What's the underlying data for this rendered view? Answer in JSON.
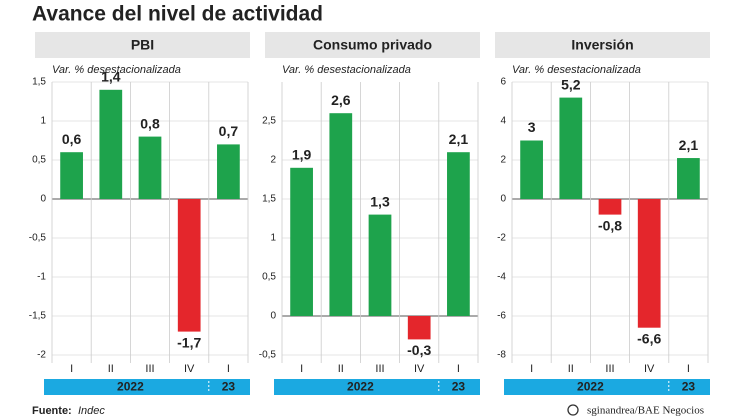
{
  "title": "Avance del nivel de actividad",
  "source_label": "Fuente:",
  "source": "Indec",
  "credit": "sginandrea/BAE Negocios",
  "chart_data": [
    {
      "type": "bar",
      "title": "PBI",
      "subtitle": "Var. % desestacionalizada",
      "categories": [
        "I",
        "II",
        "III",
        "IV",
        "I"
      ],
      "groups": [
        {
          "label": "2022",
          "count": 4
        },
        {
          "label": "23",
          "count": 1
        }
      ],
      "values": [
        0.6,
        1.4,
        0.8,
        -1.7,
        0.7
      ],
      "value_labels": [
        "0,6",
        "1,4",
        "0,8",
        "-1,7",
        "0,7"
      ],
      "color": "#1ea34c",
      "negative_color": "#e4262c",
      "ylim": [
        -2,
        1.5
      ],
      "yticks": [
        -2,
        {
          "value": -1.5,
          "label": "-1,5"
        },
        -1,
        {
          "value": -0.5,
          "label": "-0,5"
        },
        0,
        {
          "value": 0.5,
          "label": "0,5"
        },
        1,
        {
          "value": 1.5,
          "label": "1,5"
        }
      ],
      "grid": true
    },
    {
      "type": "bar",
      "title": "Consumo privado",
      "subtitle": "Var. % desestacionalizada",
      "categories": [
        "I",
        "II",
        "III",
        "IV",
        "I"
      ],
      "groups": [
        {
          "label": "2022",
          "count": 4
        },
        {
          "label": "23",
          "count": 1
        }
      ],
      "values": [
        1.9,
        2.6,
        1.3,
        -0.3,
        2.1
      ],
      "value_labels": [
        "1,9",
        "2,6",
        "1,3",
        "-0,3",
        "2,1"
      ],
      "color": "#1ea34c",
      "negative_color": "#e4262c",
      "ylim": [
        -0.5,
        3
      ],
      "yticks": [
        {
          "value": -0.5,
          "label": "-0,5"
        },
        0,
        {
          "value": 0.5,
          "label": "0,5"
        },
        1,
        {
          "value": 1.5,
          "label": "1,5"
        },
        2,
        {
          "value": 2.5,
          "label": "2,5"
        }
      ],
      "grid": true
    },
    {
      "type": "bar",
      "title": "Inversión",
      "subtitle": "Var. % desestacionalizada",
      "categories": [
        "I",
        "II",
        "III",
        "IV",
        "I"
      ],
      "groups": [
        {
          "label": "2022",
          "count": 4
        },
        {
          "label": "23",
          "count": 1
        }
      ],
      "values": [
        3,
        5.2,
        -0.8,
        -6.6,
        2.1
      ],
      "value_labels": [
        "3",
        "5,2",
        "-0,8",
        "-6,6",
        "2,1"
      ],
      "color": "#1ea34c",
      "negative_color": "#e4262c",
      "ylim": [
        -8,
        6
      ],
      "yticks": [
        -8,
        -6,
        -4,
        -2,
        0,
        2,
        4,
        6
      ],
      "grid": true
    }
  ]
}
